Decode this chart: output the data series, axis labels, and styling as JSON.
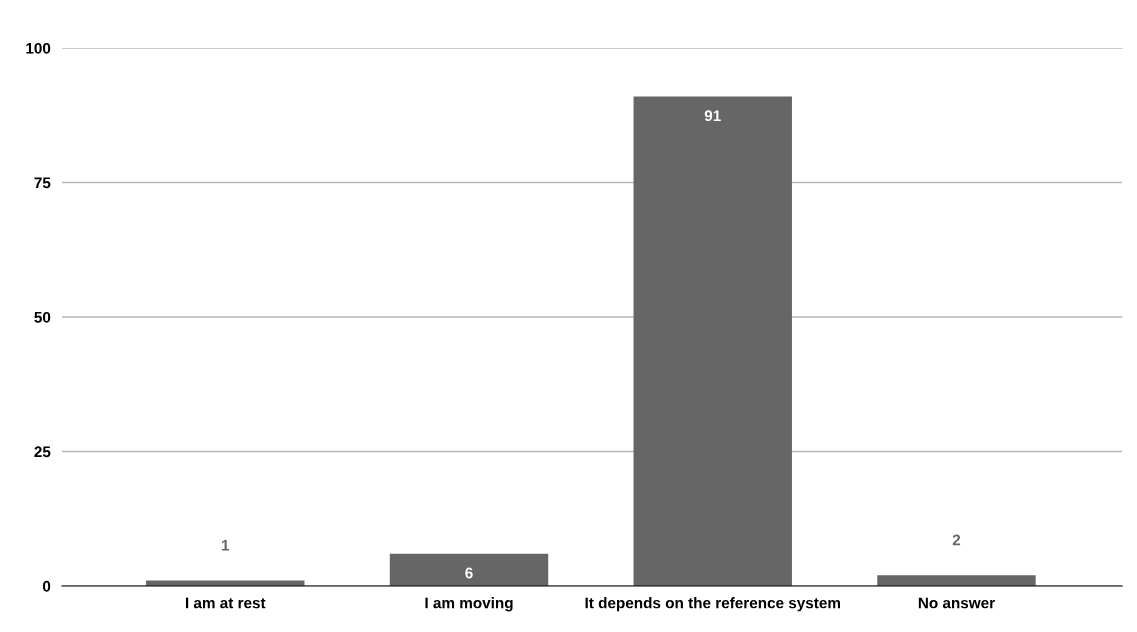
{
  "chart_data": {
    "type": "bar",
    "categories": [
      "I am at rest",
      "I am moving",
      "It depends on the reference system",
      "No answer"
    ],
    "values": [
      1,
      6,
      91,
      2
    ],
    "color": "#666666",
    "ylim": [
      0,
      100
    ],
    "yticks": [
      0,
      25,
      50,
      75,
      100
    ],
    "grid": "y",
    "data_labels": true
  }
}
